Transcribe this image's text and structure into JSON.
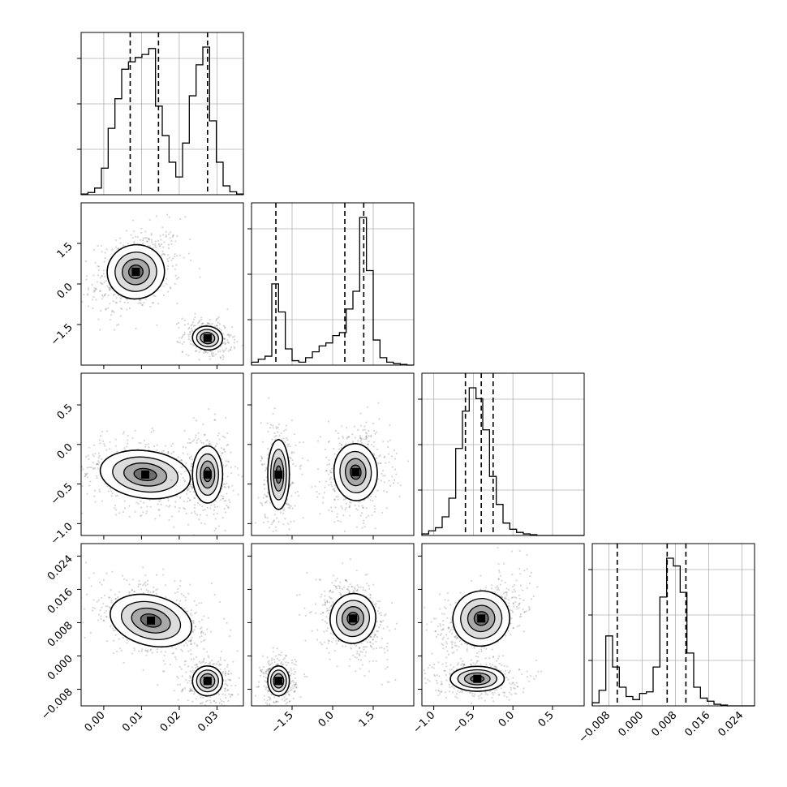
{
  "figure": {
    "type": "corner_plot",
    "grid": true
  },
  "chart_data": {
    "type": "corner",
    "dims": [
      {
        "range": [
          -0.006,
          0.037
        ],
        "ticks": [
          0.0,
          0.01,
          0.02,
          0.03
        ],
        "tick_labels": [
          "0.00",
          "0.01",
          "0.02",
          "0.03"
        ],
        "quantiles": [
          0.007,
          0.0145,
          0.0275
        ]
      },
      {
        "range": [
          -3.0,
          3.0
        ],
        "ticks": [
          -1.5,
          0.0,
          1.5
        ],
        "tick_labels": [
          "−1.5",
          "0.0",
          "1.5"
        ],
        "quantiles": [
          -2.1,
          0.45,
          1.15
        ]
      },
      {
        "range": [
          -1.15,
          0.9
        ],
        "ticks": [
          -1.0,
          -0.5,
          0.0,
          0.5
        ],
        "tick_labels": [
          "−1.0",
          "−0.5",
          "0.0",
          "0.5"
        ],
        "quantiles": [
          -0.6,
          -0.4,
          -0.25
        ]
      },
      {
        "range": [
          -0.012,
          0.027
        ],
        "ticks": [
          -0.008,
          0.0,
          0.008,
          0.016,
          0.024
        ],
        "tick_labels": [
          "−0.008",
          "0.000",
          "0.008",
          "0.016",
          "0.024"
        ],
        "quantiles": [
          -0.006,
          0.006,
          0.0105
        ]
      }
    ],
    "histograms": [
      [
        0.5,
        1.5,
        4.5,
        18,
        45,
        65,
        85,
        90,
        93,
        95,
        99,
        60,
        40,
        22,
        12,
        35,
        67,
        88,
        100,
        50,
        22,
        6,
        2,
        0.5
      ],
      [
        2,
        4,
        6,
        55,
        36,
        11,
        3,
        2,
        5,
        9,
        13,
        15,
        20,
        22,
        38,
        50,
        100,
        64,
        17,
        5,
        2,
        1,
        0.5,
        0
      ],
      [
        1,
        3,
        5,
        12,
        24,
        56,
        80,
        95,
        88,
        68,
        38,
        20,
        8,
        4,
        2,
        1,
        0.5,
        0,
        0,
        0,
        0,
        0,
        0,
        0
      ],
      [
        2,
        10,
        45,
        25,
        12,
        6,
        4,
        8,
        9,
        25,
        70,
        95,
        90,
        73,
        34,
        12,
        5,
        3,
        1,
        0.5,
        0,
        0,
        0,
        0
      ]
    ],
    "modes": [
      {
        "rows": [
          1,
          0
        ],
        "center": [
          0.0085,
          0.45
        ],
        "spread": [
          0.0038,
          0.5
        ],
        "tilt": 0.3,
        "weight": 0.6
      },
      {
        "rows": [
          1,
          0
        ],
        "center": [
          0.0275,
          -2.0
        ],
        "spread": [
          0.002,
          0.22
        ],
        "tilt": -0.2,
        "weight": 0.4
      },
      {
        "rows": [
          2,
          0
        ],
        "center": [
          0.011,
          -0.38
        ],
        "spread": [
          0.006,
          0.15
        ],
        "tilt": -0.2,
        "weight": 0.6
      },
      {
        "rows": [
          2,
          0
        ],
        "center": [
          0.0275,
          -0.38
        ],
        "spread": [
          0.002,
          0.18
        ],
        "tilt": 0.0,
        "weight": 0.4
      },
      {
        "rows": [
          2,
          1
        ],
        "center": [
          -2.0,
          -0.38
        ],
        "spread": [
          0.2,
          0.22
        ],
        "tilt": 0.0,
        "weight": 0.4
      },
      {
        "rows": [
          2,
          1
        ],
        "center": [
          0.85,
          -0.35
        ],
        "spread": [
          0.4,
          0.18
        ],
        "tilt": 0.1,
        "weight": 0.6
      },
      {
        "rows": [
          3,
          0
        ],
        "center": [
          0.0125,
          0.0085
        ],
        "spread": [
          0.0055,
          0.003
        ],
        "tilt": -0.4,
        "weight": 0.6
      },
      {
        "rows": [
          3,
          0
        ],
        "center": [
          0.0275,
          -0.006
        ],
        "spread": [
          0.002,
          0.0018
        ],
        "tilt": 0.0,
        "weight": 0.4
      },
      {
        "rows": [
          3,
          1
        ],
        "center": [
          -2.0,
          -0.006
        ],
        "spread": [
          0.2,
          0.0018
        ],
        "tilt": 0.0,
        "weight": 0.4
      },
      {
        "rows": [
          3,
          1
        ],
        "center": [
          0.75,
          0.009
        ],
        "spread": [
          0.42,
          0.003
        ],
        "tilt": -0.3,
        "weight": 0.6
      },
      {
        "rows": [
          3,
          2
        ],
        "center": [
          -0.4,
          0.009
        ],
        "spread": [
          0.18,
          0.0033
        ],
        "tilt": 0.5,
        "weight": 0.6
      },
      {
        "rows": [
          3,
          2
        ],
        "center": [
          -0.45,
          -0.0055
        ],
        "spread": [
          0.17,
          0.0015
        ],
        "tilt": 0.0,
        "weight": 0.4
      }
    ]
  }
}
